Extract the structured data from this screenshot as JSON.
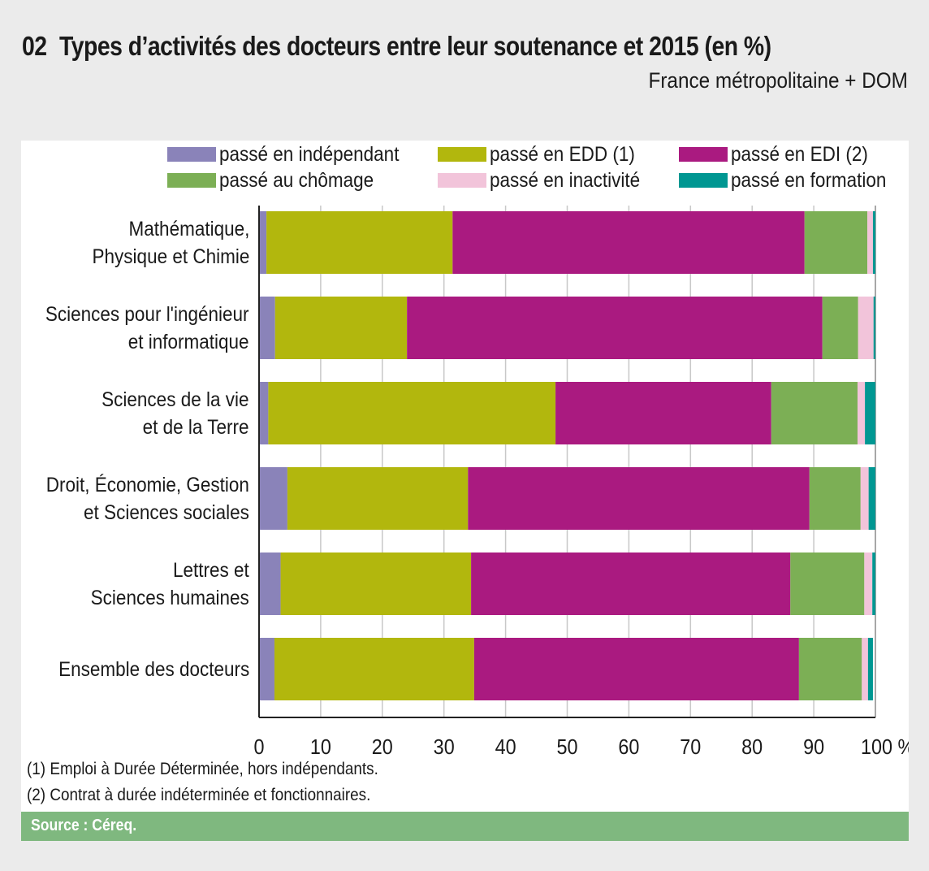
{
  "header": {
    "number": "02",
    "title": "Types d’activités des docteurs entre leur soutenance et 2015 (en %)",
    "subtitle": "France métropolitaine + DOM"
  },
  "footnotes": [
    "(1) Emploi à Durée Déterminée, hors indépendants.",
    "(2) Contrat à durée indéterminée et fonctionnaires."
  ],
  "source": "Source : Céreq.",
  "chart_data": {
    "type": "bar",
    "orientation": "horizontal",
    "stacked": true,
    "title": "Types d’activités des docteurs entre leur soutenance et 2015 (en %)",
    "subtitle": "France métropolitaine + DOM",
    "xlabel": "%",
    "ylabel": "",
    "xlim": [
      0,
      100
    ],
    "x_ticks": [
      "0",
      "10",
      "20",
      "30",
      "40",
      "50",
      "60",
      "70",
      "80",
      "90",
      "100 %"
    ],
    "grid": "vertical",
    "legend_position": "top",
    "categories": [
      [
        "Mathématique,",
        "Physique et Chimie"
      ],
      [
        "Sciences pour l'ingénieur",
        "et informatique"
      ],
      [
        "Sciences de la vie",
        "et de la Terre"
      ],
      [
        "Droit, Économie, Gestion",
        "et Sciences sociales"
      ],
      [
        "Lettres et",
        "Sciences humaines"
      ],
      [
        "Ensemble des docteurs"
      ]
    ],
    "series": [
      {
        "name": "passé en indépendant",
        "color": "#8a83b9",
        "values": [
          1.2,
          2.6,
          1.5,
          4.6,
          3.5,
          2.5
        ]
      },
      {
        "name": "passé en EDD (1)",
        "color": "#b2b70d",
        "values": [
          30.2,
          21.4,
          46.6,
          29.3,
          30.9,
          32.4
        ]
      },
      {
        "name": "passé en EDI (2)",
        "color": "#aa1a80",
        "values": [
          57.1,
          67.4,
          35.0,
          55.4,
          51.8,
          52.7
        ]
      },
      {
        "name": "passé au chômage",
        "color": "#7caf55",
        "values": [
          10.2,
          5.8,
          14.0,
          8.3,
          12.0,
          10.2
        ]
      },
      {
        "name": "passé en inactivité",
        "color": "#f2c4da",
        "values": [
          0.9,
          2.5,
          1.2,
          1.3,
          1.3,
          1.0
        ]
      },
      {
        "name": "passé en formation",
        "color": "#009792",
        "values": [
          0.4,
          0.3,
          1.7,
          1.1,
          0.5,
          0.8
        ]
      }
    ]
  }
}
